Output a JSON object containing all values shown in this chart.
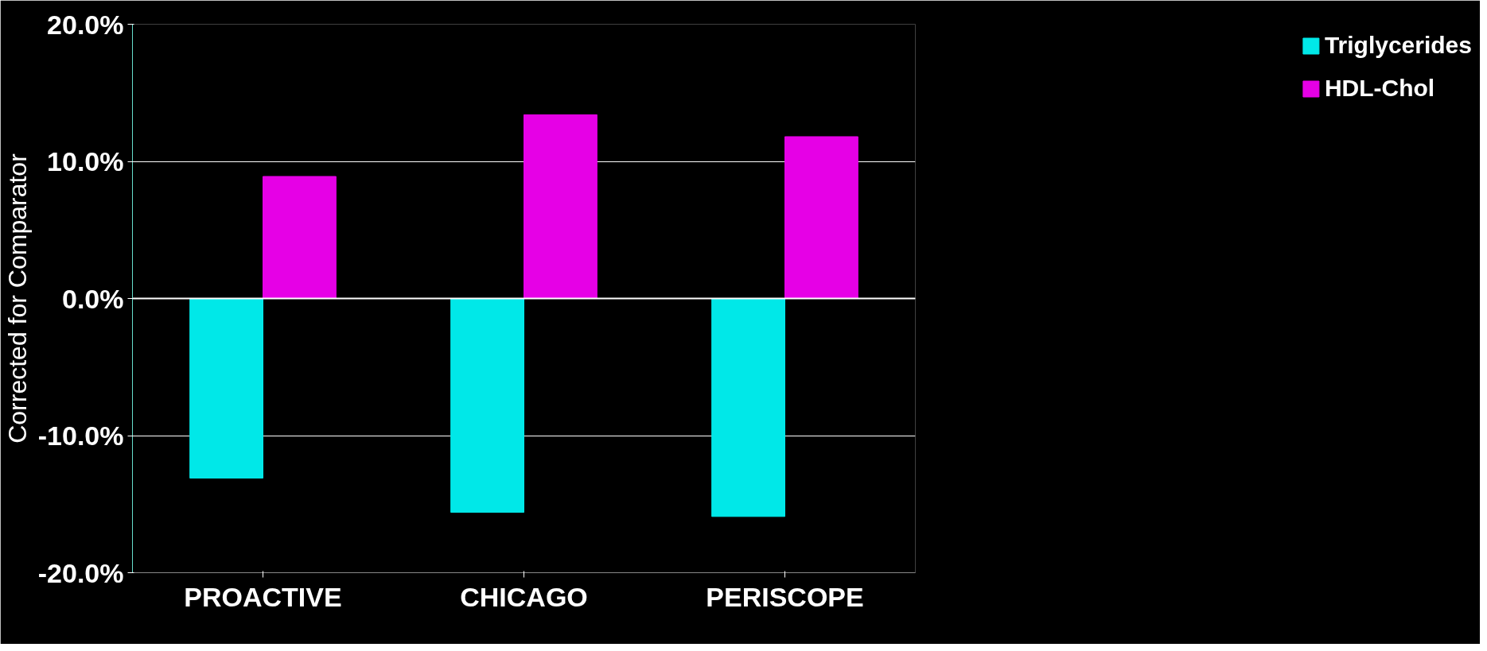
{
  "chart_data": {
    "type": "bar",
    "ylabel": "Corrected for Comparator",
    "categories": [
      "PROACTIVE",
      "CHICAGO",
      "PERISCOPE"
    ],
    "series": [
      {
        "name": "Triglycerides",
        "color": "#00e8e8",
        "values": [
          -13.1,
          -15.6,
          -15.9
        ]
      },
      {
        "name": "HDL-Chol",
        "color": "#e600e6",
        "values": [
          8.9,
          13.4,
          11.8
        ]
      }
    ],
    "ylim": [
      -20,
      20
    ],
    "yticks": [
      {
        "value": -20,
        "label": "-20.0%"
      },
      {
        "value": -10,
        "label": "-10.0%"
      },
      {
        "value": 0,
        "label": "0.0%"
      },
      {
        "value": 10,
        "label": "10.0%"
      },
      {
        "value": 20,
        "label": "20.0%"
      }
    ],
    "grid": "y",
    "legend": "right"
  }
}
